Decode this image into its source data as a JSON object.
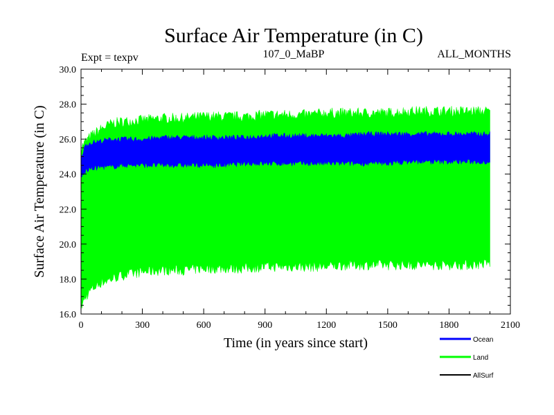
{
  "chart_data": {
    "type": "area",
    "title": "Surface Air Temperature (in C)",
    "subtitle_left": "Expt = texpv",
    "subtitle_center": "107_0_MaBP",
    "subtitle_right": "ALL_MONTHS",
    "xlabel": "Time (in years since start)",
    "ylabel": "Surface Air Temperature (in C)",
    "xlim": [
      0,
      2100
    ],
    "ylim": [
      16.0,
      30.0
    ],
    "xticks": [
      0,
      300,
      600,
      900,
      1200,
      1500,
      1800,
      2100
    ],
    "xtick_labels": [
      "0",
      "300",
      "600",
      "900",
      "1200",
      "1500",
      "1800",
      "2100"
    ],
    "yticks": [
      16,
      18,
      20,
      22,
      24,
      26,
      28,
      30
    ],
    "ytick_labels": [
      "16.0",
      "18.0",
      "20.0",
      "22.0",
      "24.0",
      "26.0",
      "28.0",
      "30.0"
    ],
    "series": [
      {
        "name": "Land",
        "color": "#00ff00",
        "x": [
          0,
          25,
          50,
          100,
          150,
          200,
          300,
          400,
          500,
          600,
          700,
          800,
          900,
          1000,
          1100,
          1200,
          1300,
          1400,
          1500,
          1600,
          1700,
          1800,
          1900,
          2000
        ],
        "upper": [
          25.5,
          25.9,
          26.2,
          26.6,
          26.9,
          27.0,
          27.1,
          27.2,
          27.2,
          27.3,
          27.3,
          27.3,
          27.4,
          27.4,
          27.4,
          27.5,
          27.5,
          27.5,
          27.5,
          27.6,
          27.6,
          27.6,
          27.6,
          27.6
        ],
        "lower": [
          16.4,
          17.0,
          17.4,
          17.8,
          18.0,
          18.2,
          18.4,
          18.5,
          18.5,
          18.6,
          18.6,
          18.6,
          18.7,
          18.7,
          18.7,
          18.7,
          18.8,
          18.8,
          18.8,
          18.8,
          18.8,
          18.8,
          18.8,
          18.9
        ]
      },
      {
        "name": "Ocean",
        "color": "#0000ff",
        "x": [
          0,
          25,
          50,
          100,
          150,
          200,
          300,
          400,
          500,
          600,
          700,
          800,
          900,
          1000,
          1100,
          1200,
          1300,
          1400,
          1500,
          1600,
          1700,
          1800,
          1900,
          2000
        ],
        "upper": [
          25.0,
          25.7,
          25.8,
          25.9,
          26.0,
          26.0,
          26.0,
          26.1,
          26.1,
          26.1,
          26.1,
          26.1,
          26.2,
          26.2,
          26.2,
          26.2,
          26.2,
          26.3,
          26.3,
          26.3,
          26.3,
          26.3,
          26.3,
          26.3
        ],
        "lower": [
          23.8,
          24.2,
          24.3,
          24.4,
          24.4,
          24.5,
          24.5,
          24.5,
          24.5,
          24.5,
          24.5,
          24.6,
          24.6,
          24.6,
          24.6,
          24.6,
          24.6,
          24.6,
          24.6,
          24.7,
          24.7,
          24.7,
          24.7,
          24.7
        ]
      },
      {
        "name": "AllSurf",
        "color": "#000000",
        "x": [],
        "upper": [],
        "lower": []
      }
    ],
    "legend": [
      {
        "label": "Ocean",
        "color": "#0000ff"
      },
      {
        "label": "Land",
        "color": "#00ff00"
      },
      {
        "label": "AllSurf",
        "color": "#000000"
      }
    ]
  }
}
